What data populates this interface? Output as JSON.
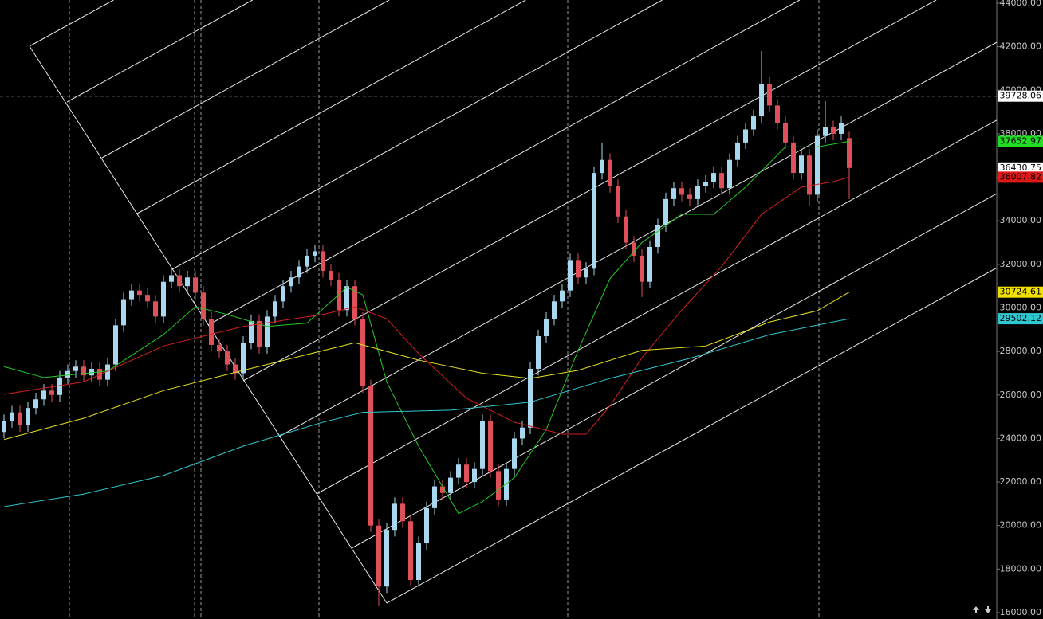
{
  "chart_data": {
    "type": "candlestick",
    "ylim": [
      16000,
      44000
    ],
    "yticks": [
      {
        "value": 16000,
        "label": "16000.00"
      },
      {
        "value": 18000,
        "label": "18000.00"
      },
      {
        "value": 20000,
        "label": "20000.00"
      },
      {
        "value": 22000,
        "label": "22000.00"
      },
      {
        "value": 24000,
        "label": "24000.00"
      },
      {
        "value": 26000,
        "label": "26000.00"
      },
      {
        "value": 28000,
        "label": "28000.00"
      },
      {
        "value": 30000,
        "label": "30000.00"
      },
      {
        "value": 32000,
        "label": "32000.00"
      },
      {
        "value": 34000,
        "label": "34000.00"
      },
      {
        "value": 36000,
        "label": "36000.00"
      },
      {
        "value": 38000,
        "label": "38000.00"
      },
      {
        "value": 40000,
        "label": "40000.00"
      },
      {
        "value": 42000,
        "label": "42000.00"
      },
      {
        "value": 44000,
        "label": "44000.00"
      }
    ],
    "up_color": "#a8d8f0",
    "down_color": "#e0505a",
    "open": [
      24300,
      24800,
      25200,
      24600,
      25400,
      25800,
      26200,
      26000,
      26800,
      27100,
      27300,
      26900,
      27200,
      26700,
      27400,
      29200,
      30400,
      30800,
      30600,
      30300,
      29600,
      31200,
      31500,
      31000,
      31400,
      30700,
      29500,
      28300,
      28000,
      27400,
      27000,
      28400,
      29400,
      28200,
      29600,
      30300,
      31000,
      31400,
      31900,
      32400,
      32600,
      31700,
      31300,
      29900,
      31000,
      29500,
      26400,
      20000,
      17200,
      19800,
      21000,
      20200,
      17500,
      19200,
      20800,
      21800,
      21500,
      22200,
      22800,
      22000,
      22600,
      24800,
      22500,
      21200,
      22600,
      24000,
      24500,
      27200,
      28700,
      29500,
      30300,
      30800,
      32200,
      31400,
      31800,
      36200,
      36800,
      35600,
      34200,
      33000,
      32400,
      31200,
      32800,
      33800,
      35000,
      35500,
      35200,
      35000,
      35600,
      35800,
      36200,
      35500,
      36800,
      37600,
      38200,
      38800,
      40300,
      39300,
      38500,
      37600,
      36200,
      37000,
      35200,
      37900,
      38300,
      38000,
      37800
    ],
    "high": [
      25100,
      25500,
      25500,
      25700,
      26100,
      26500,
      26500,
      27100,
      27400,
      27600,
      27600,
      27500,
      27500,
      27700,
      29500,
      30700,
      31100,
      31100,
      30900,
      30600,
      31500,
      31800,
      31800,
      31700,
      31700,
      31000,
      29800,
      28600,
      28300,
      27700,
      28700,
      29700,
      29700,
      29900,
      30600,
      31300,
      31700,
      32200,
      32700,
      32900,
      32900,
      32000,
      31600,
      31300,
      31300,
      29800,
      26700,
      20300,
      20100,
      21300,
      21300,
      20500,
      19500,
      21100,
      22100,
      22100,
      22500,
      23100,
      23100,
      22900,
      25100,
      25100,
      22800,
      22900,
      24300,
      24800,
      27500,
      29000,
      29800,
      30600,
      31100,
      32500,
      32500,
      32100,
      36500,
      37600,
      37100,
      35900,
      34500,
      33300,
      32700,
      33100,
      34100,
      35300,
      35800,
      35800,
      35500,
      35900,
      36100,
      36500,
      36500,
      37100,
      37900,
      38500,
      39100,
      41800,
      40600,
      39600,
      38800,
      37900,
      37300,
      37300,
      38200,
      39500,
      38600,
      38800,
      38100
    ],
    "low": [
      24000,
      24500,
      24300,
      24300,
      25100,
      25500,
      25700,
      25700,
      26500,
      26800,
      26600,
      26600,
      26400,
      26400,
      27100,
      28900,
      30100,
      30300,
      30000,
      29300,
      29300,
      30900,
      30700,
      30700,
      30400,
      29200,
      28000,
      27700,
      27100,
      26700,
      26700,
      28100,
      27900,
      27900,
      29300,
      30000,
      30700,
      31100,
      31600,
      32100,
      31400,
      31000,
      29600,
      29600,
      29200,
      26100,
      19700,
      16300,
      16900,
      19500,
      19900,
      17200,
      17200,
      18900,
      20500,
      21200,
      21200,
      21900,
      21700,
      21700,
      22300,
      22200,
      20900,
      20900,
      22300,
      23700,
      24200,
      26900,
      28400,
      29200,
      30000,
      30500,
      31100,
      31100,
      31500,
      35900,
      35300,
      33900,
      32700,
      32100,
      30500,
      30900,
      32500,
      33500,
      34700,
      34900,
      34700,
      34700,
      35300,
      35500,
      35200,
      35200,
      36500,
      37300,
      37900,
      38500,
      39000,
      38200,
      37300,
      35900,
      35900,
      34700,
      34900,
      37600,
      37700,
      37700,
      35000
    ],
    "close": [
      24800,
      25200,
      24600,
      25400,
      25800,
      26200,
      26000,
      26800,
      27100,
      27300,
      26900,
      27200,
      26700,
      27400,
      29200,
      30400,
      30800,
      30600,
      30300,
      29600,
      31200,
      31500,
      31000,
      31400,
      30700,
      29500,
      28300,
      28000,
      27400,
      27000,
      28400,
      29400,
      28200,
      29600,
      30300,
      31000,
      31400,
      31900,
      32400,
      32600,
      31700,
      31300,
      29900,
      31000,
      29500,
      26400,
      20000,
      17200,
      19800,
      21000,
      20200,
      17500,
      19200,
      20800,
      21800,
      21500,
      22200,
      22800,
      22000,
      22600,
      24800,
      22500,
      21200,
      22600,
      24000,
      24500,
      27200,
      28700,
      29500,
      30300,
      30800,
      32200,
      31400,
      31800,
      36200,
      36800,
      35600,
      34200,
      33000,
      32400,
      31200,
      32800,
      33800,
      35000,
      35500,
      35200,
      35000,
      35600,
      35800,
      36200,
      35500,
      36800,
      37600,
      38200,
      38800,
      40300,
      39300,
      38500,
      37600,
      36200,
      37000,
      35200,
      37900,
      38300,
      38000,
      38500,
      36430.75
    ],
    "lines": [
      {
        "color": "#22cc22",
        "x": [
          0,
          5,
          13,
          20,
          24,
          28,
          33,
          38,
          43,
          45,
          48,
          52,
          57,
          60,
          64,
          68,
          72,
          76,
          80,
          85,
          89,
          93,
          98,
          102,
          106
        ],
        "values": [
          27300,
          26800,
          27100,
          28775,
          30050,
          29700,
          29150,
          29300,
          30950,
          30600,
          26600,
          23650,
          20550,
          21100,
          22200,
          24400,
          28050,
          31350,
          33000,
          34300,
          34300,
          35550,
          37400,
          37400,
          37652.97
        ]
      },
      {
        "color": "#d42020",
        "x": [
          0,
          10,
          20,
          30,
          40,
          44,
          48,
          52,
          58,
          64,
          70,
          73,
          76,
          80,
          85,
          90,
          95,
          100,
          104,
          106
        ],
        "values": [
          26030,
          26600,
          28250,
          29150,
          29700,
          30050,
          29500,
          27900,
          25850,
          24750,
          24200,
          24200,
          25500,
          27700,
          29900,
          31900,
          34300,
          35550,
          35800,
          36007.82
        ]
      },
      {
        "color": "#e8e020",
        "x": [
          0,
          10,
          20,
          30,
          44,
          52,
          60,
          66,
          72,
          80,
          88,
          96,
          102,
          106
        ],
        "values": [
          23950,
          24930,
          26200,
          27130,
          28400,
          27600,
          27000,
          26760,
          27130,
          28050,
          28250,
          29350,
          29870,
          30724.61
        ]
      },
      {
        "color": "#30c8d0",
        "x": [
          0,
          10,
          20,
          30,
          40,
          45,
          56,
          66,
          76,
          86,
          96,
          106
        ],
        "values": [
          20870,
          21450,
          22300,
          23650,
          24750,
          25200,
          25300,
          25670,
          26760,
          27680,
          28770,
          29502.12
        ]
      }
    ],
    "price_labels": [
      {
        "value": 39728.06,
        "color": "#ffffff"
      },
      {
        "value": 37652.97,
        "color": "#22dd22"
      },
      {
        "value": 36430.75,
        "color": "#ffffff"
      },
      {
        "value": 36007.82,
        "color": "#e01818"
      },
      {
        "value": 30724.61,
        "color": "#f0e000"
      },
      {
        "value": 29502.12,
        "color": "#30c8d0"
      }
    ]
  }
}
